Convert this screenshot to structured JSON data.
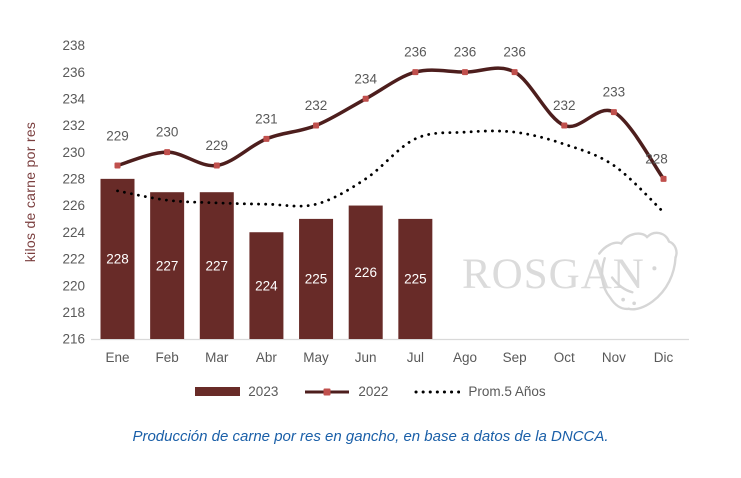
{
  "watermark": {
    "brand": "ROSGAN"
  },
  "caption": "Producción de carne por res en gancho, en base a datos de la DNCCA.",
  "colors": {
    "bar": "#682B28",
    "line_2022": "#4D1E1D",
    "marker_2022": "#C0504D",
    "dotted_line": "#000000",
    "axis_text": "#595959",
    "bar_value_label": "#FFFFFF",
    "y_axis_title": "#7B3F3F",
    "caption_text": "#1A5FA8",
    "watermark_gray": "#DBDBDB",
    "baseline": "#D9D9D9"
  },
  "chart_data": {
    "type": "bar",
    "subtype": "combo-bar-line",
    "categories": [
      "Ene",
      "Feb",
      "Mar",
      "Abr",
      "May",
      "Jun",
      "Jul",
      "Ago",
      "Sep",
      "Oct",
      "Nov",
      "Dic"
    ],
    "series": [
      {
        "name": "2023",
        "type": "bar",
        "color": "#682B28",
        "values": [
          228,
          227,
          227,
          224,
          225,
          226,
          225
        ],
        "value_labels": "inside"
      },
      {
        "name": "2022",
        "type": "line",
        "color": "#4D1E1D",
        "marker_color": "#C0504D",
        "values": [
          229,
          230,
          229,
          231,
          232,
          234,
          236,
          236,
          236,
          232,
          233,
          228
        ],
        "value_labels": "above"
      },
      {
        "name": "Prom.5 Años",
        "type": "dotted-line",
        "color": "#000000",
        "values": [
          227.1,
          226.4,
          226.2,
          226.1,
          226.1,
          228.0,
          231.0,
          231.5,
          231.5,
          230.6,
          229.0,
          225.5
        ],
        "value_labels": "none"
      }
    ],
    "ylabel": "kilos de carne por res",
    "xlabel": "",
    "ylim": [
      216,
      238
    ],
    "ytick_step": 2,
    "grid": false,
    "legend_position": "bottom"
  }
}
